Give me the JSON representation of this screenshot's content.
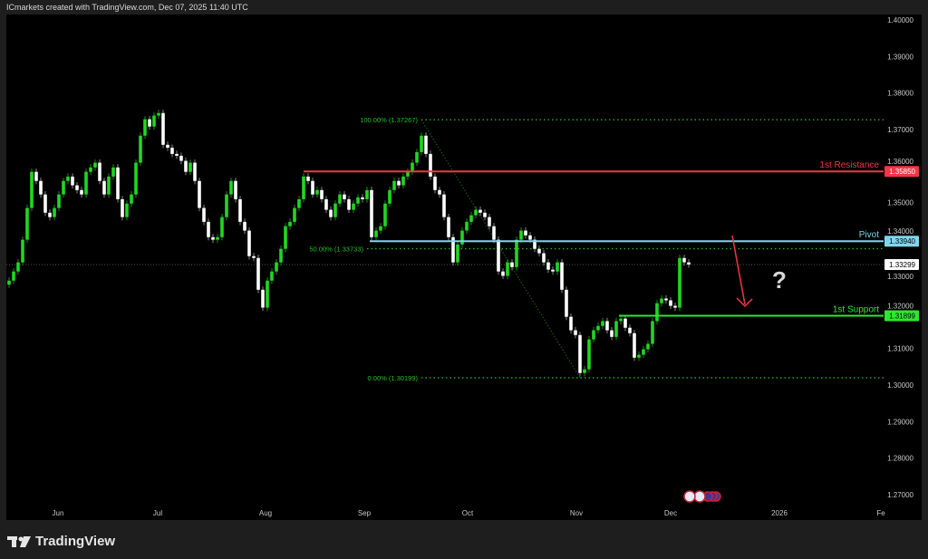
{
  "header": {
    "attribution": "ICmarkets created with TradingView.com, Dec 07, 2025 11:40 UTC"
  },
  "footer": {
    "brand": "TradingView"
  },
  "colors": {
    "background": "#000000",
    "up": "#22d622",
    "down": "#ffffff",
    "resistance": "#f23645",
    "pivot": "#7fd6ea",
    "support": "#2ee82e",
    "fib": "#22c022",
    "arrow": "#f23645"
  },
  "chart_data": {
    "type": "candlestick",
    "ylim": [
      1.265,
      1.4015
    ],
    "y_ticks": [
      "1.40000",
      "1.39000",
      "1.38000",
      "1.37000",
      "1.36000",
      "1.35000",
      "1.34000",
      "1.33000",
      "1.32000",
      "1.31000",
      "1.30000",
      "1.29000",
      "1.28000",
      "1.27000"
    ],
    "x_ticks": [
      "Jun",
      "Jul",
      "Aug",
      "Sep",
      "Oct",
      "Nov",
      "Dec",
      "2026",
      "Fe"
    ],
    "first_open": 1.3275,
    "closes": [
      1.3286,
      1.3311,
      1.3336,
      1.3398,
      1.3485,
      1.3584,
      1.3559,
      1.3522,
      1.3472,
      1.346,
      1.3485,
      1.3522,
      1.3559,
      1.3571,
      1.3547,
      1.3534,
      1.3522,
      1.3584,
      1.3596,
      1.3609,
      1.3559,
      1.3522,
      1.3571,
      1.3596,
      1.3509,
      1.346,
      1.3497,
      1.3522,
      1.3609,
      1.3683,
      1.3728,
      1.3708,
      1.3738,
      1.3745,
      1.3658,
      1.365,
      1.3633,
      1.3628,
      1.3614,
      1.3584,
      1.3609,
      1.3559,
      1.3485,
      1.3447,
      1.3405,
      1.3398,
      1.3405,
      1.346,
      1.3522,
      1.3559,
      1.3509,
      1.3447,
      1.3423,
      1.3353,
      1.3348,
      1.3261,
      1.3212,
      1.3286,
      1.3311,
      1.3336,
      1.3373,
      1.3435,
      1.3447,
      1.3485,
      1.3509,
      1.3571,
      1.3559,
      1.3522,
      1.3534,
      1.3509,
      1.348,
      1.346,
      1.3497,
      1.3522,
      1.3509,
      1.348,
      1.3497,
      1.3514,
      1.3509,
      1.3534,
      1.3405,
      1.3423,
      1.3435,
      1.3497,
      1.3534,
      1.3559,
      1.3547,
      1.3571,
      1.3584,
      1.3609,
      1.3638,
      1.3683,
      1.3633,
      1.3571,
      1.3534,
      1.3522,
      1.346,
      1.3405,
      1.3336,
      1.3385,
      1.3423,
      1.3447,
      1.3465,
      1.348,
      1.3472,
      1.346,
      1.3435,
      1.3398,
      1.3311,
      1.3299,
      1.3336,
      1.3323,
      1.3398,
      1.3423,
      1.341,
      1.3398,
      1.3373,
      1.3361,
      1.3336,
      1.3316,
      1.3311,
      1.3336,
      1.3261,
      1.3187,
      1.315,
      1.3137,
      1.3033,
      1.3043,
      1.3125,
      1.315,
      1.3162,
      1.3175,
      1.315,
      1.3132,
      1.3175,
      1.3182,
      1.3157,
      1.3142,
      1.3075,
      1.3083,
      1.3098,
      1.3113,
      1.3175,
      1.3224,
      1.3237,
      1.3232,
      1.3217,
      1.3212,
      1.3348,
      1.3336,
      1.333
    ],
    "levels": {
      "resistance": {
        "label": "1st Resistance",
        "price": 1.3585,
        "price_label": "1.35850"
      },
      "pivot": {
        "label": "Pivot",
        "price": 1.3394,
        "price_label": "1.33940"
      },
      "support": {
        "label": "1st Support",
        "price": 1.31899,
        "price_label": "1.31899"
      },
      "current": {
        "price": 1.33299,
        "price_label": "1.33299"
      }
    },
    "fibonacci": [
      {
        "label": "100.00% (1.37267)",
        "price": 1.37267
      },
      {
        "label": "50.00% (1.33733)",
        "price": 1.33733
      },
      {
        "label": "0.00% (1.30199)",
        "price": 1.30199
      }
    ],
    "annotation": {
      "text": "?",
      "arrow": "down"
    }
  }
}
